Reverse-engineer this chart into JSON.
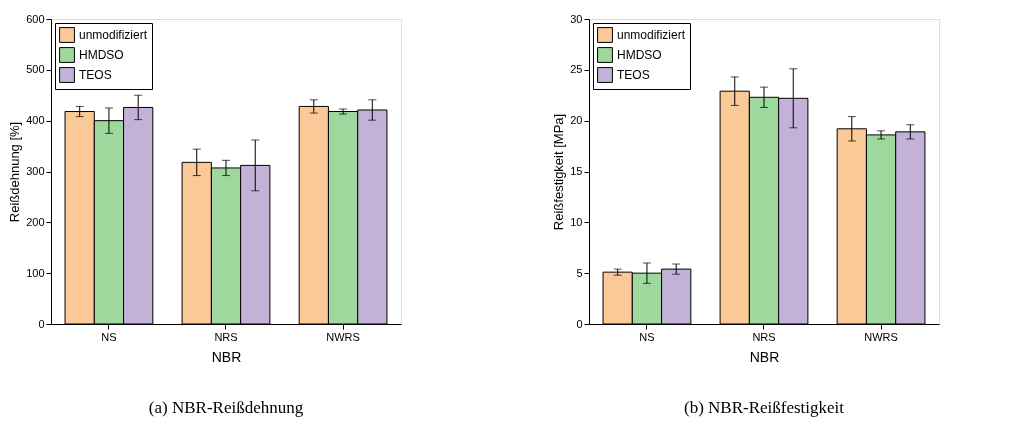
{
  "chart_data": [
    {
      "type": "bar",
      "xlabel": "NBR",
      "ylabel": "Reißdehnung [%]",
      "categories": [
        "NS",
        "NRS",
        "NWRS"
      ],
      "ylim": [
        0,
        600
      ],
      "yticks": [
        0,
        100,
        200,
        300,
        400,
        500,
        600
      ],
      "legend": "top left",
      "grid": false,
      "annotations": [
        "(a) NBR-Reißdehnung"
      ],
      "series": [
        {
          "name": "unmodifiziert",
          "color": "#fbc997",
          "values": [
            418,
            318,
            428
          ],
          "errors": [
            10,
            26,
            13
          ]
        },
        {
          "name": "HMDSO",
          "color": "#9fd89c",
          "values": [
            400,
            307,
            418
          ],
          "errors": [
            25,
            15,
            5
          ]
        },
        {
          "name": "TEOS",
          "color": "#c3b1d8",
          "values": [
            426,
            312,
            421
          ],
          "errors": [
            24,
            50,
            20
          ]
        }
      ]
    },
    {
      "type": "bar",
      "xlabel": "NBR",
      "ylabel": "Reißfestigkeit [MPa]",
      "categories": [
        "NS",
        "NRS",
        "NWRS"
      ],
      "ylim": [
        0,
        30
      ],
      "yticks": [
        0,
        5,
        10,
        15,
        20,
        25,
        30
      ],
      "legend": "top left",
      "grid": false,
      "annotations": [
        "(b) NBR-Reißfestigkeit"
      ],
      "series": [
        {
          "name": "unmodifiziert",
          "color": "#fbc997",
          "values": [
            5.1,
            22.9,
            19.2
          ],
          "errors": [
            0.3,
            1.4,
            1.2
          ]
        },
        {
          "name": "HMDSO",
          "color": "#9fd89c",
          "values": [
            5.0,
            22.3,
            18.6
          ],
          "errors": [
            1.0,
            1.0,
            0.4
          ]
        },
        {
          "name": "TEOS",
          "color": "#c3b1d8",
          "values": [
            5.4,
            22.2,
            18.9
          ],
          "errors": [
            0.5,
            2.9,
            0.7
          ]
        }
      ]
    }
  ]
}
